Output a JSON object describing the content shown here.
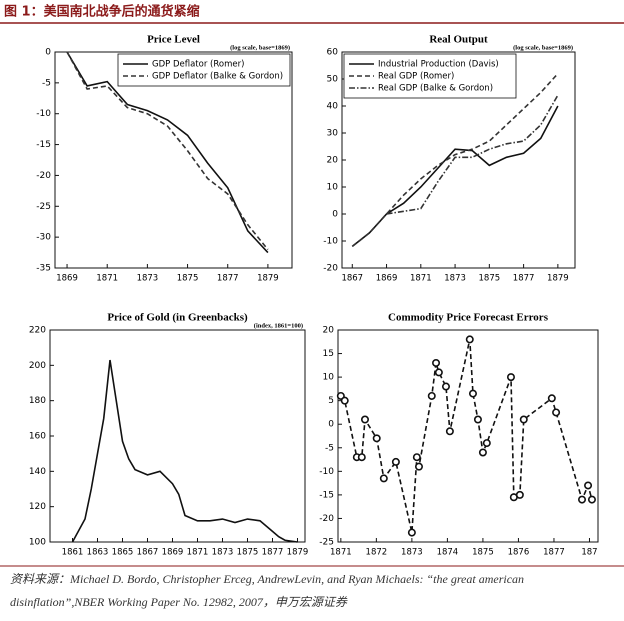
{
  "header": {
    "title": "图 1：美国南北战争后的通货紧缩"
  },
  "source": {
    "line1": "资料来源：Michael D. Bordo, Christopher Erceg, AndrewLevin, and Ryan Michaels:   “the great american",
    "line2": "disinflation”,NBER Working Paper No. 12982, 2007，申万宏源证券"
  },
  "chart_data": [
    {
      "type": "line",
      "title": "Price Level",
      "note": "(log scale, base=1869)",
      "legend": "upper right",
      "xlim": [
        1868.4,
        1880.2
      ],
      "xticks": [
        1869,
        1871,
        1873,
        1875,
        1877,
        1879
      ],
      "ylim": [
        -35,
        0
      ],
      "yticks": [
        0,
        -5,
        -10,
        -15,
        -20,
        -25,
        -30,
        -35
      ],
      "x": [
        1869,
        1870,
        1871,
        1872,
        1873,
        1874,
        1875,
        1876,
        1877,
        1878,
        1879
      ],
      "series": [
        {
          "name": "GDP Deflator (Romer)",
          "color": "#111111",
          "style": "solid",
          "values": [
            0,
            -5.5,
            -4.8,
            -8.5,
            -9.5,
            -11,
            -13.5,
            -18,
            -22,
            -29,
            -32.5
          ]
        },
        {
          "name": "GDP Deflator (Balke & Gordon)",
          "color": "#333333",
          "style": "dashed",
          "values": [
            0,
            -6,
            -5.5,
            -9,
            -10,
            -12,
            -16,
            -20.5,
            -23,
            -28,
            -32
          ]
        }
      ]
    },
    {
      "type": "line",
      "title": "Real Output",
      "note": "(log scale, base=1869)",
      "legend": "upper left",
      "xlim": [
        1866.4,
        1880
      ],
      "xticks": [
        1867,
        1869,
        1871,
        1873,
        1875,
        1877,
        1879
      ],
      "ylim": [
        -20,
        60
      ],
      "yticks": [
        60,
        50,
        40,
        30,
        20,
        10,
        0,
        -10,
        -20
      ],
      "x": [
        1867,
        1868,
        1869,
        1870,
        1871,
        1872,
        1873,
        1874,
        1875,
        1876,
        1877,
        1878,
        1879
      ],
      "series": [
        {
          "name": "Industrial Production (Davis)",
          "color": "#111111",
          "style": "solid",
          "values": [
            -12,
            -7,
            0,
            4,
            10,
            17,
            24,
            23.5,
            18,
            21,
            22.5,
            28,
            40
          ]
        },
        {
          "name": "Real GDP (Romer)",
          "color": "#333333",
          "style": "dashed",
          "values": [
            -12,
            -7,
            0,
            7,
            13,
            18,
            22,
            24,
            27,
            33,
            39,
            45,
            52
          ]
        },
        {
          "name": "Real GDP (Balke & Gordon)",
          "color": "#333333",
          "style": "dashdot",
          "values": [
            null,
            null,
            0,
            1,
            2,
            12,
            21,
            21,
            24,
            26,
            27,
            33,
            44
          ]
        }
      ]
    },
    {
      "type": "line",
      "title": "Price of Gold (in Greenbacks)",
      "note": "(index, 1861=100)",
      "xlim": [
        1859.2,
        1879.6
      ],
      "xticks": [
        1861,
        1863,
        1865,
        1867,
        1869,
        1871,
        1873,
        1875,
        1877,
        1879
      ],
      "ylim": [
        100,
        220
      ],
      "yticks": [
        220,
        200,
        180,
        160,
        140,
        120,
        100
      ],
      "x": [
        1861,
        1862,
        1862.5,
        1863,
        1863.5,
        1864,
        1864.5,
        1865,
        1865.5,
        1866,
        1867,
        1868,
        1869,
        1869.5,
        1870,
        1871,
        1872,
        1873,
        1874,
        1875,
        1876,
        1877,
        1877.5,
        1878,
        1879
      ],
      "color": "#111111",
      "style": "solid",
      "values": [
        100,
        113,
        130,
        150,
        170,
        203,
        180,
        157,
        147,
        141,
        138,
        140,
        133,
        127,
        115,
        112,
        112,
        113,
        111,
        113,
        112,
        106,
        103,
        101,
        100
      ]
    },
    {
      "type": "line",
      "title": "Commodity Price Forecast Errors",
      "marker": "circle",
      "xlim": [
        1870.92,
        1878.24
      ],
      "xticks": [
        1871,
        1872,
        1873,
        1874,
        1875,
        1876,
        1877,
        {
          "value": 1878,
          "label": "187"
        }
      ],
      "ylim": [
        -25,
        20
      ],
      "yticks": [
        20,
        15,
        10,
        5,
        0,
        -5,
        -10,
        -15,
        -20,
        -25
      ],
      "x": [
        1871.0,
        1871.11,
        1871.45,
        1871.59,
        1871.68,
        1872.01,
        1872.21,
        1872.55,
        1873.0,
        1873.14,
        1873.2,
        1873.56,
        1873.68,
        1873.76,
        1873.96,
        1874.07,
        1874.63,
        1874.72,
        1874.86,
        1875.0,
        1875.11,
        1875.79,
        1875.87,
        1876.04,
        1876.15,
        1876.94,
        1877.06,
        1877.79,
        1877.96,
        1878.07
      ],
      "color": "#111111",
      "style": "dashed",
      "values": [
        6,
        5,
        -7,
        -7,
        1,
        -3,
        -11.5,
        -8,
        -23,
        -7,
        -9,
        6,
        13,
        11,
        8,
        -1.5,
        18,
        6.5,
        1,
        -6,
        -4,
        10,
        -15.5,
        -15,
        1,
        5.5,
        2.5,
        -16,
        -13,
        -16
      ]
    }
  ]
}
